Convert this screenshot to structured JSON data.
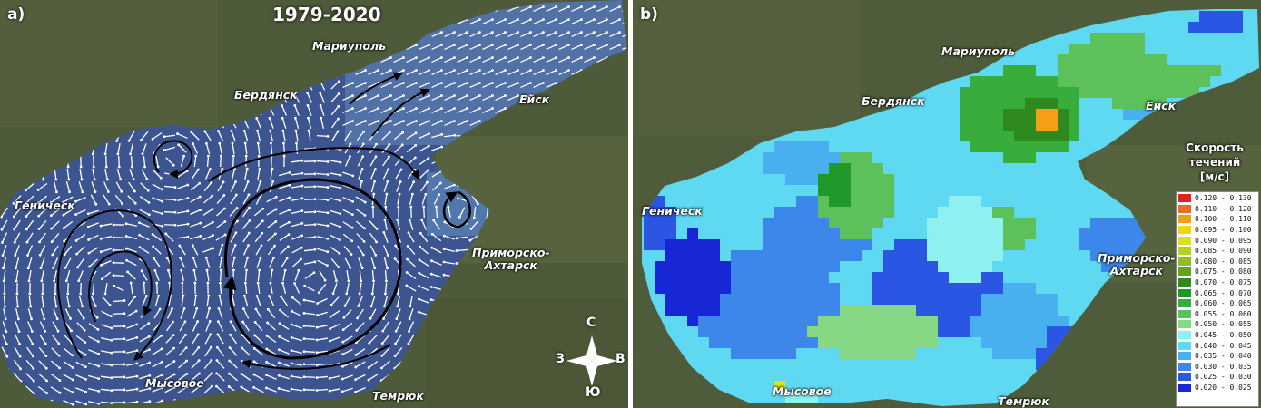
{
  "panel_a": {
    "label": "a)",
    "period": "1979-2020",
    "cities": [
      {
        "id": "mariupol",
        "name": "Мариуполь"
      },
      {
        "id": "berdyansk",
        "name": "Бердянск"
      },
      {
        "id": "yeysk",
        "name": "Ейск"
      },
      {
        "id": "genichesk",
        "name": "Геническ"
      },
      {
        "id": "primorsko",
        "name": "Приморско-\nАхтарск"
      },
      {
        "id": "mysovoe",
        "name": "Мысовое"
      },
      {
        "id": "temryuk",
        "name": "Темрюк"
      }
    ],
    "compass": {
      "n": "С",
      "s": "Ю",
      "w": "З",
      "e": "В"
    },
    "colors": {
      "land": "#4d5a3a",
      "sea": "#3d5590",
      "arrows": "#ffffff",
      "gyre_arrows": "#000000"
    }
  },
  "panel_b": {
    "label": "b)",
    "cities": [
      {
        "id": "mariupol",
        "name": "Мариуполь"
      },
      {
        "id": "berdyansk",
        "name": "Бердянск"
      },
      {
        "id": "yeysk",
        "name": "Ейск"
      },
      {
        "id": "genichesk",
        "name": "Геническ"
      },
      {
        "id": "primorsko",
        "name": "Приморско-\nАхтарск"
      },
      {
        "id": "mysovoe",
        "name": "Мысовое"
      },
      {
        "id": "temryuk",
        "name": "Темрюк"
      }
    ],
    "legend": {
      "title": "Скорость\nтечений\n[м/с]",
      "items": [
        {
          "label": "0.120 - 0.130",
          "color": "#e8201c"
        },
        {
          "label": "0.110 - 0.120",
          "color": "#f26a1e"
        },
        {
          "label": "0.100 - 0.110",
          "color": "#f59e16"
        },
        {
          "label": "0.095 - 0.100",
          "color": "#f2d611"
        },
        {
          "label": "0.090 - 0.095",
          "color": "#d9e21a"
        },
        {
          "label": "0.085 - 0.090",
          "color": "#b7d21e"
        },
        {
          "label": "0.080 - 0.085",
          "color": "#8fc020"
        },
        {
          "label": "0.075 - 0.080",
          "color": "#62a320"
        },
        {
          "label": "0.070 - 0.075",
          "color": "#2f8a1e"
        },
        {
          "label": "0.065 - 0.070",
          "color": "#1f9a2a"
        },
        {
          "label": "0.060 - 0.065",
          "color": "#39ad3c"
        },
        {
          "label": "0.055 - 0.060",
          "color": "#5cc15a"
        },
        {
          "label": "0.050 - 0.055",
          "color": "#86d884"
        },
        {
          "label": "0.045 - 0.050",
          "color": "#8ef0f0"
        },
        {
          "label": "0.040 - 0.045",
          "color": "#5fd9f2"
        },
        {
          "label": "0.035 - 0.040",
          "color": "#49b0f0"
        },
        {
          "label": "0.030 - 0.035",
          "color": "#3d87ea"
        },
        {
          "label": "0.025 - 0.030",
          "color": "#2b55e3"
        },
        {
          "label": "0.020 - 0.025",
          "color": "#1827d6"
        }
      ]
    }
  }
}
